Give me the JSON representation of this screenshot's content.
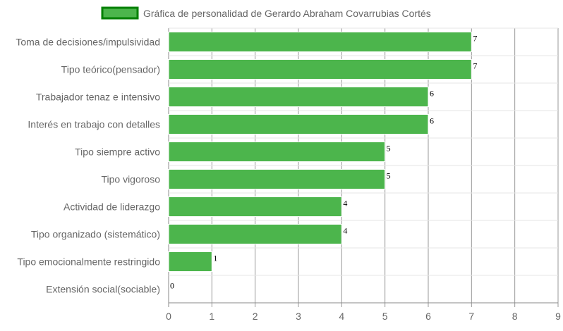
{
  "chart_data": {
    "type": "bar",
    "orientation": "horizontal",
    "title": "",
    "legend": {
      "position": "top",
      "entries": [
        {
          "name": "Gráfica de personalidad de Gerardo Abraham Covarrubias Cortés",
          "color": "#4cb54c",
          "border": "#008000"
        }
      ]
    },
    "categories": [
      "Toma de decisiones/impulsividad",
      "Tipo teórico(pensador)",
      "Trabajador tenaz e intensivo",
      "Interés en trabajo con detalles",
      "Tipo siempre activo",
      "Tipo vigoroso",
      "Actividad de liderazgo",
      "Tipo organizado (sistemático)",
      "Tipo emocionalmente restringido",
      "Extensión social(sociable)"
    ],
    "series": [
      {
        "name": "Gráfica de personalidad de Gerardo Abraham Covarrubias Cortés",
        "values": [
          7,
          7,
          6,
          6,
          5,
          5,
          4,
          4,
          1,
          0
        ],
        "color": "#4cb54c"
      }
    ],
    "value_labels": [
      "7",
      "7",
      "6",
      "6",
      "5",
      "5",
      "4",
      "4",
      "1",
      "0"
    ],
    "x_ticks": [
      "0",
      "1",
      "2",
      "3",
      "4",
      "5",
      "6",
      "7",
      "8",
      "9"
    ],
    "xlim": [
      0,
      9
    ],
    "xlabel": "",
    "ylabel": "",
    "grid": true
  }
}
